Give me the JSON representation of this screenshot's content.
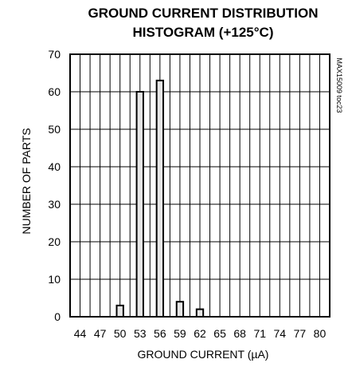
{
  "chart_data": {
    "type": "bar",
    "title_lines": [
      "GROUND CURRENT DISTRIBUTION",
      "HISTOGRAM (+125°C)"
    ],
    "xlabel": "GROUND CURRENT (µA)",
    "ylabel": "NUMBER OF PARTS",
    "side_note": "MAX15009 toc23",
    "x_ticks": [
      "44",
      "47",
      "50",
      "53",
      "56",
      "59",
      "62",
      "65",
      "68",
      "71",
      "74",
      "77",
      "80"
    ],
    "y_ticks": [
      "0",
      "10",
      "20",
      "30",
      "40",
      "50",
      "60",
      "70"
    ],
    "ylim": [
      0,
      70
    ],
    "xlim": [
      42.5,
      81.5
    ],
    "grid": true,
    "bar_color": "#e6e6e6",
    "bars": [
      {
        "x": 50,
        "value": 3
      },
      {
        "x": 53,
        "value": 60
      },
      {
        "x": 56,
        "value": 63
      },
      {
        "x": 59,
        "value": 4
      },
      {
        "x": 62,
        "value": 2
      }
    ]
  }
}
